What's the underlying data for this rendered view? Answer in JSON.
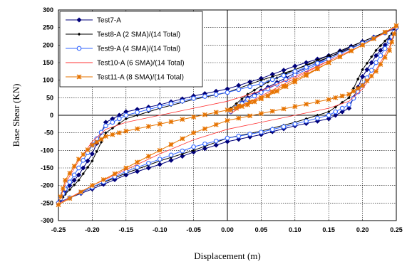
{
  "chart_data": {
    "type": "line",
    "xlabel": "Displacement (m)",
    "ylabel": "Base Shear (KN)",
    "xlim": [
      -0.25,
      0.25
    ],
    "ylim": [
      -300,
      300
    ],
    "xticks": [
      "-0.25",
      "-0.20",
      "-0.15",
      "-0.10",
      "-0.05",
      "0.00",
      "0.05",
      "0.10",
      "0.15",
      "0.20",
      "0.25"
    ],
    "yticks": [
      "300",
      "250",
      "200",
      "150",
      "100",
      "50",
      "0",
      "-50",
      "-100",
      "-150",
      "-200",
      "-250",
      "-300"
    ],
    "grid": true,
    "legend_position": "top-left",
    "series": [
      {
        "name": "Test7-A",
        "color": "#00007a",
        "marker": "diamond",
        "points": [
          [
            0.005,
            10
          ],
          [
            0.03,
            50
          ],
          [
            0.06,
            80
          ],
          [
            0.1,
            120
          ],
          [
            0.15,
            165
          ],
          [
            0.2,
            210
          ],
          [
            0.25,
            248
          ],
          [
            0.24,
            215
          ],
          [
            0.22,
            170
          ],
          [
            0.2,
            110
          ],
          [
            0.18,
            20
          ],
          [
            0.15,
            -10
          ],
          [
            0.1,
            -30
          ],
          [
            0.05,
            -55
          ],
          [
            0,
            -75
          ],
          [
            -0.05,
            -105
          ],
          [
            -0.1,
            -140
          ],
          [
            -0.15,
            -170
          ],
          [
            -0.2,
            -210
          ],
          [
            -0.25,
            -248
          ],
          [
            -0.24,
            -215
          ],
          [
            -0.22,
            -170
          ],
          [
            -0.2,
            -110
          ],
          [
            -0.18,
            -20
          ],
          [
            -0.15,
            10
          ],
          [
            -0.1,
            30
          ],
          [
            -0.05,
            55
          ],
          [
            0,
            75
          ],
          [
            0.05,
            105
          ],
          [
            0.1,
            140
          ],
          [
            0.15,
            170
          ],
          [
            0.2,
            210
          ],
          [
            0.25,
            248
          ]
        ]
      },
      {
        "name": "Test8-A (2 SMA)/(14 Total)",
        "color": "#000000",
        "marker": "small-diamond",
        "points": [
          [
            0.005,
            20
          ],
          [
            0.03,
            60
          ],
          [
            0.06,
            95
          ],
          [
            0.1,
            130
          ],
          [
            0.15,
            170
          ],
          [
            0.2,
            210
          ],
          [
            0.25,
            250
          ],
          [
            0.24,
            225
          ],
          [
            0.22,
            185
          ],
          [
            0.2,
            130
          ],
          [
            0.18,
            50
          ],
          [
            0.15,
            10
          ],
          [
            0.1,
            -20
          ],
          [
            0.05,
            -45
          ],
          [
            0,
            -65
          ],
          [
            -0.05,
            -100
          ],
          [
            -0.1,
            -130
          ],
          [
            -0.15,
            -165
          ],
          [
            -0.2,
            -205
          ],
          [
            -0.25,
            -250
          ],
          [
            -0.24,
            -225
          ],
          [
            -0.22,
            -185
          ],
          [
            -0.2,
            -130
          ],
          [
            -0.18,
            -50
          ],
          [
            -0.15,
            -10
          ],
          [
            -0.1,
            20
          ],
          [
            -0.05,
            45
          ],
          [
            0,
            65
          ],
          [
            0.05,
            100
          ],
          [
            0.1,
            130
          ],
          [
            0.15,
            165
          ],
          [
            0.2,
            205
          ],
          [
            0.25,
            250
          ]
        ]
      },
      {
        "name": "Test9-A (4 SMA)/(14 Total)",
        "color": "#3366ff",
        "marker": "circle",
        "points": [
          [
            0.005,
            10
          ],
          [
            0.03,
            45
          ],
          [
            0.06,
            75
          ],
          [
            0.1,
            115
          ],
          [
            0.15,
            160
          ],
          [
            0.2,
            205
          ],
          [
            0.25,
            250
          ],
          [
            0.24,
            210
          ],
          [
            0.22,
            150
          ],
          [
            0.2,
            85
          ],
          [
            0.18,
            30
          ],
          [
            0.15,
            0
          ],
          [
            0.1,
            -25
          ],
          [
            0.05,
            -48
          ],
          [
            0,
            -65
          ],
          [
            -0.05,
            -90
          ],
          [
            -0.1,
            -125
          ],
          [
            -0.15,
            -160
          ],
          [
            -0.2,
            -205
          ],
          [
            -0.25,
            -250
          ],
          [
            -0.24,
            -210
          ],
          [
            -0.22,
            -150
          ],
          [
            -0.2,
            -85
          ],
          [
            -0.18,
            -30
          ],
          [
            -0.15,
            0
          ],
          [
            -0.1,
            25
          ],
          [
            -0.05,
            48
          ],
          [
            0,
            65
          ],
          [
            0.05,
            90
          ],
          [
            0.1,
            125
          ],
          [
            0.15,
            160
          ],
          [
            0.2,
            205
          ],
          [
            0.25,
            250
          ]
        ]
      },
      {
        "name": "Test10-A (6 SMA)/(14 Total)",
        "color": "#ff3333",
        "marker": "none",
        "points": [
          [
            0.005,
            5
          ],
          [
            0.03,
            35
          ],
          [
            0.06,
            65
          ],
          [
            0.1,
            105
          ],
          [
            0.15,
            155
          ],
          [
            0.2,
            200
          ],
          [
            0.25,
            252
          ],
          [
            0.24,
            195
          ],
          [
            0.22,
            130
          ],
          [
            0.2,
            75
          ],
          [
            0.18,
            40
          ],
          [
            0.15,
            20
          ],
          [
            0.1,
            0
          ],
          [
            0.05,
            -20
          ],
          [
            0,
            -40
          ],
          [
            -0.05,
            -70
          ],
          [
            -0.1,
            -110
          ],
          [
            -0.15,
            -155
          ],
          [
            -0.2,
            -200
          ],
          [
            -0.25,
            -252
          ],
          [
            -0.24,
            -195
          ],
          [
            -0.22,
            -130
          ],
          [
            -0.2,
            -75
          ],
          [
            -0.18,
            -40
          ],
          [
            -0.15,
            -20
          ],
          [
            -0.1,
            0
          ],
          [
            -0.05,
            20
          ],
          [
            0,
            40
          ],
          [
            0.05,
            70
          ],
          [
            0.1,
            110
          ],
          [
            0.15,
            155
          ],
          [
            0.2,
            200
          ],
          [
            0.25,
            252
          ]
        ]
      },
      {
        "name": "Test11-A (8 SMA)/(14 Total)",
        "color": "#e67300",
        "marker": "star",
        "points": [
          [
            0.005,
            15
          ],
          [
            0.03,
            30
          ],
          [
            0.06,
            55
          ],
          [
            0.1,
            95
          ],
          [
            0.15,
            150
          ],
          [
            0.2,
            200
          ],
          [
            0.25,
            255
          ],
          [
            0.24,
            185
          ],
          [
            0.22,
            125
          ],
          [
            0.2,
            85
          ],
          [
            0.18,
            60
          ],
          [
            0.15,
            45
          ],
          [
            0.1,
            25
          ],
          [
            0.05,
            5
          ],
          [
            0,
            -15
          ],
          [
            -0.05,
            -50
          ],
          [
            -0.1,
            -100
          ],
          [
            -0.15,
            -150
          ],
          [
            -0.2,
            -200
          ],
          [
            -0.25,
            -255
          ],
          [
            -0.24,
            -185
          ],
          [
            -0.22,
            -125
          ],
          [
            -0.2,
            -85
          ],
          [
            -0.18,
            -60
          ],
          [
            -0.15,
            -45
          ],
          [
            -0.1,
            -25
          ],
          [
            -0.05,
            -5
          ],
          [
            0,
            15
          ],
          [
            0.05,
            50
          ],
          [
            0.1,
            100
          ],
          [
            0.15,
            150
          ],
          [
            0.2,
            200
          ],
          [
            0.25,
            255
          ]
        ]
      }
    ]
  }
}
